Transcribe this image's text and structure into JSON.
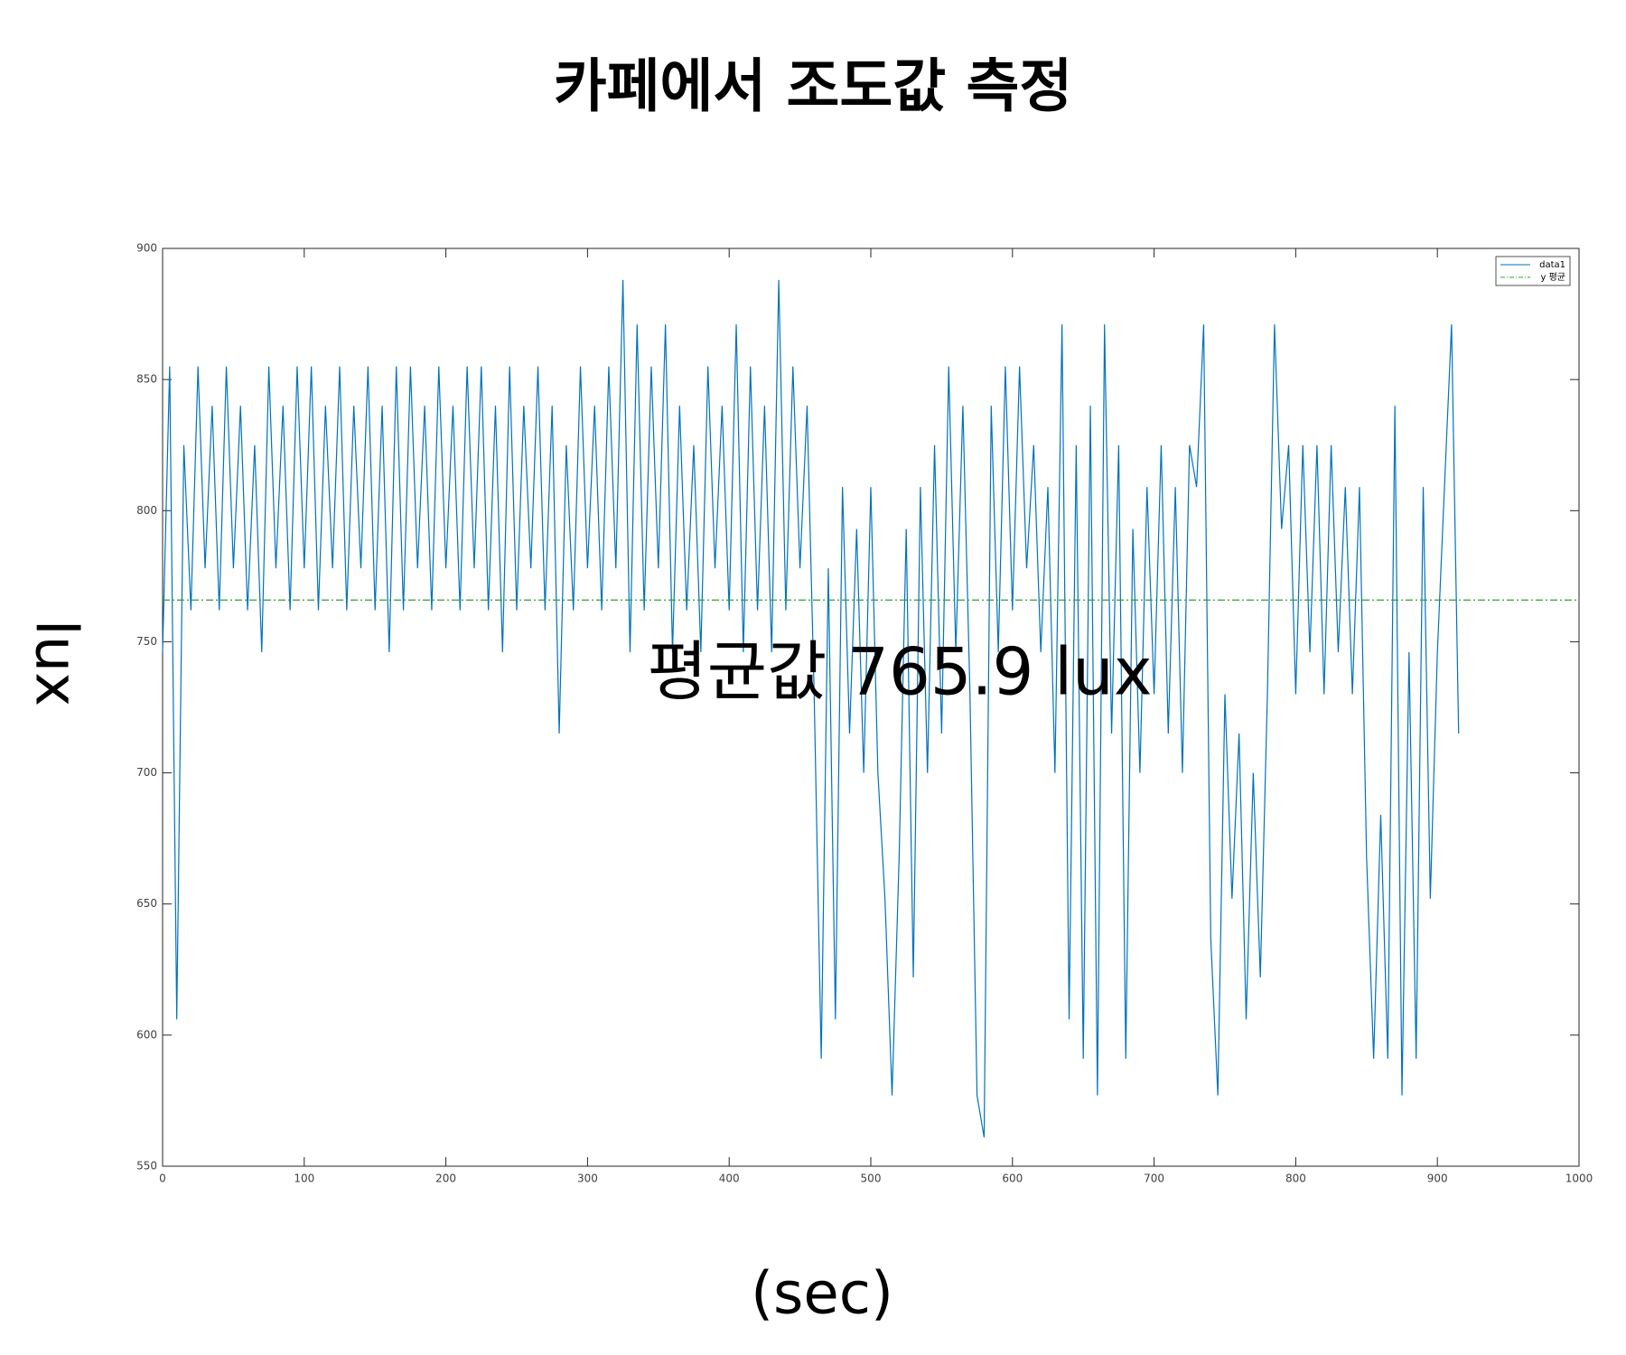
{
  "chart_data": {
    "type": "line",
    "title": "카페에서 조도값 측정",
    "x_label": "(sec)",
    "y_label": "lux",
    "annotation": "평균값 765.9 lux",
    "x": [
      0,
      5,
      10,
      15,
      20,
      25,
      30,
      35,
      40,
      45,
      50,
      55,
      60,
      65,
      70,
      75,
      80,
      85,
      90,
      95,
      100,
      105,
      110,
      115,
      120,
      125,
      130,
      135,
      140,
      145,
      150,
      155,
      160,
      165,
      170,
      175,
      180,
      185,
      190,
      195,
      200,
      205,
      210,
      215,
      220,
      225,
      230,
      235,
      240,
      245,
      250,
      255,
      260,
      265,
      270,
      275,
      280,
      285,
      290,
      295,
      300,
      305,
      310,
      315,
      320,
      325,
      330,
      335,
      340,
      345,
      350,
      355,
      360,
      365,
      370,
      375,
      380,
      385,
      390,
      395,
      400,
      405,
      410,
      415,
      420,
      425,
      430,
      435,
      440,
      445,
      450,
      455,
      460,
      465,
      470,
      475,
      480,
      485,
      490,
      495,
      500,
      505,
      510,
      515,
      520,
      525,
      530,
      535,
      540,
      545,
      550,
      555,
      560,
      565,
      570,
      575,
      580,
      585,
      590,
      595,
      600,
      605,
      610,
      615,
      620,
      625,
      630,
      635,
      640,
      645,
      650,
      655,
      660,
      665,
      670,
      675,
      680,
      685,
      690,
      695,
      700,
      705,
      710,
      715,
      720,
      725,
      730,
      735,
      740,
      745,
      750,
      755,
      760,
      765,
      770,
      775,
      780,
      785,
      790,
      795,
      800,
      805,
      810,
      815,
      820,
      825,
      830,
      835,
      840,
      845,
      850,
      855,
      860,
      865,
      870,
      875,
      880,
      885,
      890,
      895,
      900,
      905,
      910,
      915
    ],
    "series": [
      {
        "name": "data1",
        "color": "#0072bd",
        "values": [
          746,
          855,
          606,
          825,
          762,
          855,
          778,
          840,
          762,
          855,
          778,
          840,
          762,
          825,
          746,
          855,
          778,
          840,
          762,
          855,
          778,
          855,
          762,
          840,
          778,
          855,
          762,
          840,
          778,
          855,
          762,
          840,
          746,
          855,
          762,
          855,
          778,
          840,
          762,
          855,
          778,
          840,
          762,
          855,
          778,
          855,
          762,
          840,
          746,
          855,
          762,
          840,
          778,
          855,
          762,
          840,
          715,
          825,
          762,
          855,
          778,
          840,
          762,
          855,
          778,
          888,
          746,
          871,
          762,
          855,
          778,
          871,
          746,
          840,
          762,
          825,
          746,
          855,
          778,
          840,
          762,
          871,
          746,
          855,
          762,
          840,
          746,
          888,
          762,
          855,
          778,
          840,
          730,
          591,
          778,
          606,
          809,
          715,
          793,
          700,
          809,
          700,
          652,
          577,
          668,
          793,
          622,
          809,
          700,
          825,
          715,
          855,
          746,
          840,
          730,
          577,
          561,
          840,
          746,
          855,
          762,
          855,
          778,
          825,
          746,
          809,
          700,
          871,
          606,
          825,
          591,
          840,
          577,
          871,
          715,
          825,
          591,
          793,
          700,
          809,
          730,
          825,
          715,
          809,
          700,
          825,
          809,
          871,
          637,
          577,
          730,
          652,
          715,
          606,
          700,
          622,
          730,
          871,
          793,
          825,
          730,
          825,
          746,
          825,
          730,
          825,
          746,
          809,
          730,
          809,
          668,
          591,
          684,
          591,
          840,
          577,
          746,
          591,
          809,
          652,
          746,
          809,
          871,
          715
        ]
      }
    ],
    "mean_line": {
      "name": "y 평균",
      "color": "#2ca02c",
      "value": 765.9
    },
    "xlim": [
      0,
      1000
    ],
    "xticks": [
      0,
      100,
      200,
      300,
      400,
      500,
      600,
      700,
      800,
      900,
      1000
    ],
    "ylim": [
      550,
      900
    ],
    "yticks": [
      550,
      600,
      650,
      700,
      750,
      800,
      850,
      900
    ],
    "legend": "upper right"
  }
}
